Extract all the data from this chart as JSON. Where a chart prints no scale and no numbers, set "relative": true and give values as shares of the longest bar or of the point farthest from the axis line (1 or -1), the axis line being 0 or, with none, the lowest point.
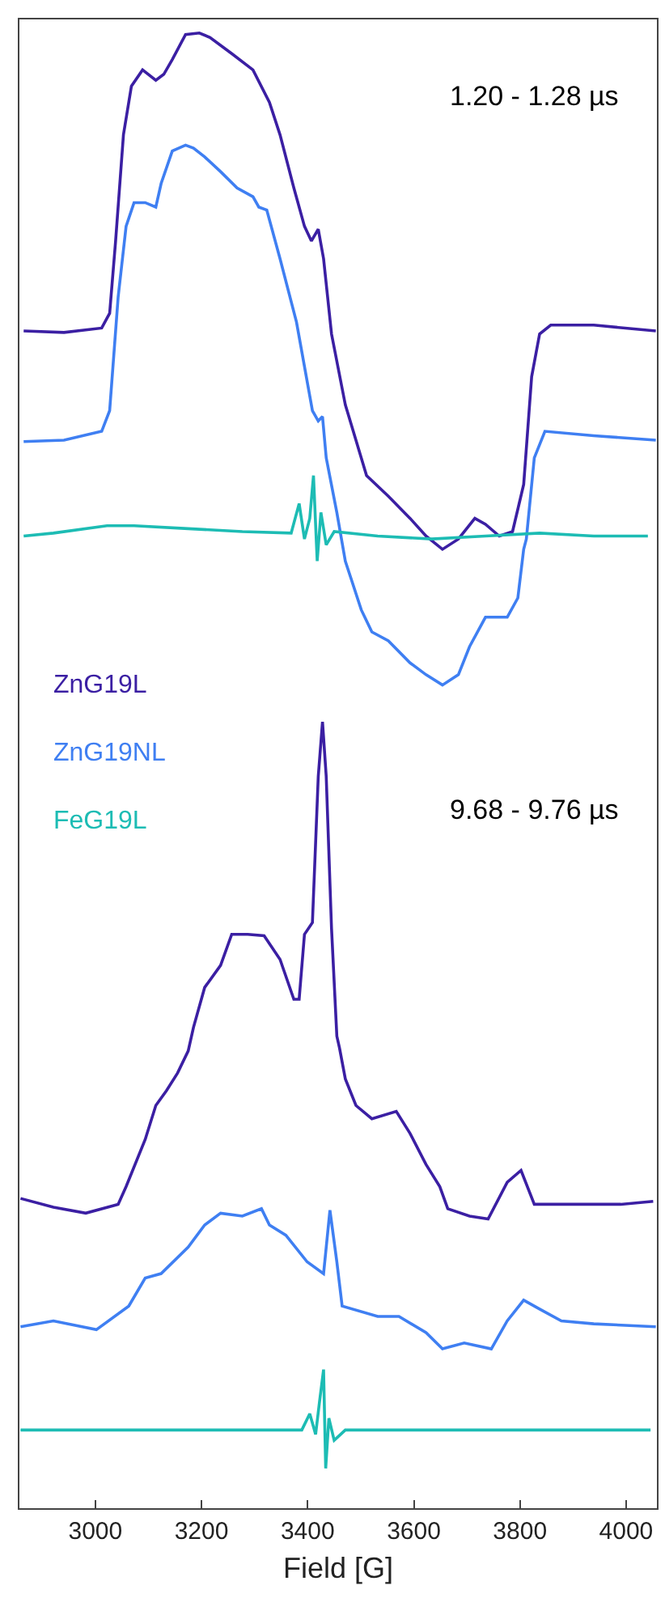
{
  "chart_data": {
    "type": "line",
    "relative": true,
    "xlabel": "Field [G]",
    "xlim": [
      2857,
      4058
    ],
    "xticks": [
      3000,
      3200,
      3400,
      3600,
      3800,
      4000
    ],
    "tick_labels": "x",
    "legend": "left",
    "marker": "none",
    "line_style": "solid",
    "annotations": [
      "1.20 - 1.28 µs",
      "9.68 - 9.76 µs"
    ],
    "series": [
      {
        "name": "ZnG19L",
        "color": "#3b1fa3",
        "x": [
          2865,
          2941,
          3012,
          3027,
          3038,
          3053,
          3068,
          3089,
          3114,
          3129,
          3145,
          3170,
          3196,
          3216,
          3257,
          3297,
          3328,
          3348,
          3374,
          3394,
          3407,
          3420,
          3430,
          3445,
          3471,
          3511,
          3552,
          3593,
          3623,
          3654,
          3684,
          3715,
          3735,
          3761,
          3786,
          3807,
          3822,
          3837,
          3858,
          3939,
          4056
        ],
        "values": [
          0.798,
          0.797,
          0.8,
          0.81,
          0.858,
          0.931,
          0.964,
          0.975,
          0.968,
          0.972,
          0.982,
          0.999,
          1.0,
          0.997,
          0.986,
          0.975,
          0.953,
          0.931,
          0.895,
          0.869,
          0.859,
          0.867,
          0.847,
          0.796,
          0.748,
          0.7,
          0.686,
          0.671,
          0.659,
          0.65,
          0.657,
          0.671,
          0.667,
          0.659,
          0.662,
          0.694,
          0.767,
          0.796,
          0.802,
          0.802,
          0.798
        ]
      },
      {
        "name": "ZnG19NL",
        "color": "#3f7ff2",
        "x": [
          2865,
          2941,
          3012,
          3027,
          3043,
          3058,
          3073,
          3094,
          3114,
          3124,
          3145,
          3170,
          3185,
          3206,
          3236,
          3267,
          3297,
          3308,
          3323,
          3348,
          3379,
          3409,
          3420,
          3428,
          3435,
          3455,
          3471,
          3481,
          3501,
          3521,
          3552,
          3593,
          3623,
          3654,
          3684,
          3705,
          3735,
          3776,
          3796,
          3807,
          3812,
          3827,
          3847,
          3939,
          4056
        ],
        "values": [
          0.723,
          0.724,
          0.73,
          0.744,
          0.821,
          0.869,
          0.885,
          0.885,
          0.882,
          0.898,
          0.92,
          0.924,
          0.922,
          0.916,
          0.906,
          0.895,
          0.889,
          0.882,
          0.88,
          0.847,
          0.804,
          0.744,
          0.737,
          0.74,
          0.712,
          0.675,
          0.642,
          0.631,
          0.609,
          0.594,
          0.588,
          0.573,
          0.565,
          0.558,
          0.565,
          0.584,
          0.604,
          0.604,
          0.617,
          0.65,
          0.657,
          0.712,
          0.73,
          0.727,
          0.724
        ]
      },
      {
        "name": "FeG19L",
        "color": "#1dbcb4",
        "x": [
          2865,
          2921,
          3022,
          3073,
          3175,
          3277,
          3369,
          3384,
          3394,
          3404,
          3411,
          3418,
          3425,
          3435,
          3450,
          3532,
          3634,
          3735,
          3837,
          3939,
          4041
        ],
        "values": [
          0.659,
          0.661,
          0.666,
          0.666,
          0.664,
          0.662,
          0.661,
          0.681,
          0.657,
          0.671,
          0.7,
          0.642,
          0.675,
          0.653,
          0.662,
          0.659,
          0.657,
          0.659,
          0.661,
          0.659,
          0.659
        ]
      },
      {
        "color": "#3b1fa3",
        "x": [
          2859,
          2921,
          2982,
          3043,
          3058,
          3094,
          3114,
          3134,
          3155,
          3175,
          3185,
          3206,
          3236,
          3257,
          3287,
          3318,
          3348,
          3374,
          3384,
          3394,
          3409,
          3420,
          3428,
          3435,
          3445,
          3455,
          3460,
          3471,
          3491,
          3521,
          3567,
          3593,
          3623,
          3649,
          3664,
          3705,
          3740,
          3776,
          3802,
          3827,
          3888,
          3990,
          4051
        ],
        "values": [
          0.21,
          0.204,
          0.2,
          0.206,
          0.218,
          0.25,
          0.273,
          0.283,
          0.295,
          0.31,
          0.326,
          0.353,
          0.368,
          0.389,
          0.389,
          0.388,
          0.372,
          0.345,
          0.345,
          0.389,
          0.397,
          0.496,
          0.533,
          0.496,
          0.393,
          0.32,
          0.312,
          0.291,
          0.273,
          0.264,
          0.269,
          0.254,
          0.233,
          0.218,
          0.203,
          0.198,
          0.196,
          0.221,
          0.229,
          0.206,
          0.206,
          0.206,
          0.208
        ]
      },
      {
        "color": "#3f7ff2",
        "x": [
          2859,
          2921,
          3002,
          3063,
          3094,
          3124,
          3175,
          3206,
          3236,
          3277,
          3313,
          3328,
          3359,
          3399,
          3430,
          3442,
          3455,
          3465,
          3532,
          3572,
          3623,
          3654,
          3695,
          3746,
          3776,
          3807,
          3837,
          3878,
          3939,
          4056
        ],
        "values": [
          0.123,
          0.127,
          0.121,
          0.137,
          0.156,
          0.159,
          0.177,
          0.192,
          0.2,
          0.198,
          0.203,
          0.192,
          0.185,
          0.167,
          0.159,
          0.202,
          0.167,
          0.137,
          0.13,
          0.13,
          0.119,
          0.108,
          0.112,
          0.108,
          0.127,
          0.141,
          0.135,
          0.127,
          0.125,
          0.123
        ]
      },
      {
        "color": "#1dbcb4",
        "x": [
          2859,
          3022,
          3226,
          3389,
          3404,
          3415,
          3422,
          3430,
          3434,
          3440,
          3450,
          3471,
          3634,
          3837,
          4046
        ],
        "values": [
          0.053,
          0.053,
          0.053,
          0.053,
          0.064,
          0.05,
          0.071,
          0.094,
          0.027,
          0.061,
          0.046,
          0.053,
          0.053,
          0.053,
          0.053
        ]
      }
    ]
  }
}
